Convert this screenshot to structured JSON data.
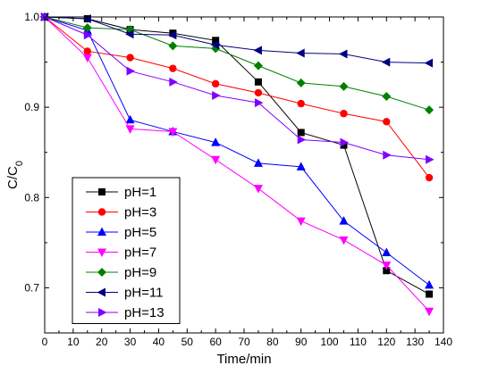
{
  "chart_data": {
    "type": "line",
    "xlabel": "Time/min",
    "ylabel_main": "C/C",
    "ylabel_sub": "0",
    "xlim": [
      0,
      140
    ],
    "ylim": [
      0.65,
      1.0
    ],
    "x_ticks": [
      0,
      10,
      20,
      30,
      40,
      50,
      60,
      70,
      80,
      90,
      100,
      110,
      120,
      130,
      140
    ],
    "y_ticks": [
      0.7,
      0.8,
      0.9,
      1.0
    ],
    "x_tick_labels": [
      "0",
      "10",
      "20",
      "30",
      "40",
      "50",
      "60",
      "70",
      "80",
      "90",
      "100",
      "110",
      "120",
      "130",
      "140"
    ],
    "y_tick_labels": [
      "0.7",
      "0.8",
      "0.9",
      "1.0"
    ],
    "legend_position": "bottom-left",
    "grid": false,
    "x": [
      0,
      15,
      30,
      45,
      60,
      75,
      90,
      105,
      120,
      135
    ],
    "series": [
      {
        "name": "pH=1",
        "color": "#000000",
        "marker": "square",
        "values": [
          1.0,
          0.998,
          0.986,
          0.982,
          0.974,
          0.928,
          0.872,
          0.858,
          0.719,
          0.693
        ]
      },
      {
        "name": "pH=3",
        "color": "#ff0000",
        "marker": "circle",
        "values": [
          1.0,
          0.962,
          0.955,
          0.943,
          0.926,
          0.916,
          0.904,
          0.893,
          0.884,
          0.822
        ]
      },
      {
        "name": "pH=5",
        "color": "#0000ff",
        "marker": "triangle-up",
        "values": [
          1.0,
          0.985,
          0.886,
          0.873,
          0.861,
          0.838,
          0.834,
          0.774,
          0.739,
          0.703
        ]
      },
      {
        "name": "pH=7",
        "color": "#ff00ff",
        "marker": "triangle-down",
        "values": [
          1.0,
          0.955,
          0.876,
          0.873,
          0.842,
          0.81,
          0.774,
          0.753,
          0.725,
          0.674
        ]
      },
      {
        "name": "pH=9",
        "color": "#008000",
        "marker": "diamond",
        "values": [
          1.0,
          0.988,
          0.986,
          0.968,
          0.965,
          0.946,
          0.927,
          0.923,
          0.912,
          0.897
        ]
      },
      {
        "name": "pH=11",
        "color": "#000080",
        "marker": "triangle-left",
        "values": [
          1.0,
          0.998,
          0.981,
          0.98,
          0.969,
          0.963,
          0.96,
          0.959,
          0.95,
          0.949
        ]
      },
      {
        "name": "pH=13",
        "color": "#8000ff",
        "marker": "triangle-right",
        "values": [
          1.0,
          0.98,
          0.94,
          0.928,
          0.913,
          0.905,
          0.864,
          0.861,
          0.847,
          0.842
        ]
      }
    ]
  }
}
